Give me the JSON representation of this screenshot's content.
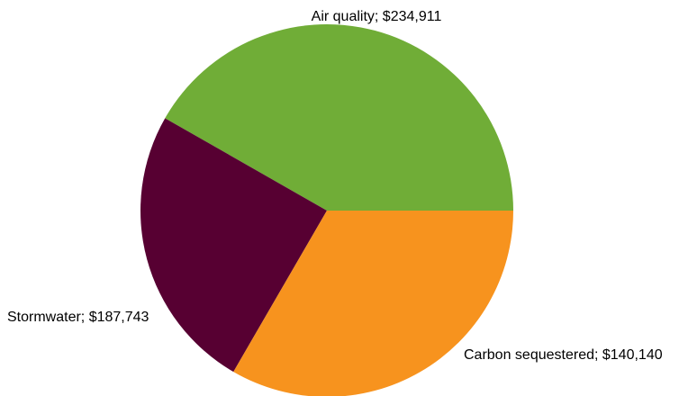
{
  "chart_data": {
    "type": "pie",
    "slices": [
      {
        "label": "Air quality; $234,911",
        "category": "Air quality",
        "value": 234911,
        "color": "#70AD37",
        "label_anchor": "middle"
      },
      {
        "label": "Carbon sequestered; $140,140",
        "category": "Carbon sequestered",
        "value": 140140,
        "color": "#570032",
        "label_anchor": "start"
      },
      {
        "label": "Stormwater; $187,743",
        "category": "Stormwater",
        "value": 187743,
        "color": "#F7931E",
        "label_anchor": "start"
      }
    ]
  }
}
